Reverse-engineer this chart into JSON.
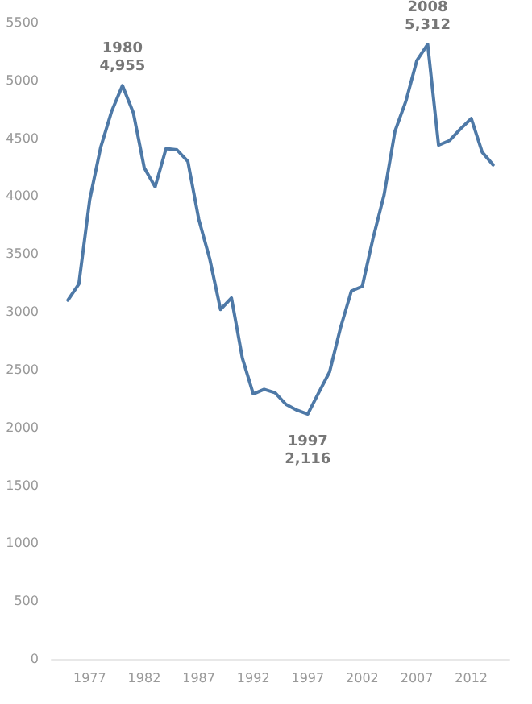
{
  "chart_data": {
    "type": "line",
    "x": [
      1975,
      1976,
      1977,
      1978,
      1979,
      1980,
      1981,
      1982,
      1983,
      1984,
      1985,
      1986,
      1987,
      1988,
      1989,
      1990,
      1991,
      1992,
      1993,
      1994,
      1995,
      1996,
      1997,
      1998,
      1999,
      2000,
      2001,
      2002,
      2003,
      2004,
      2005,
      2006,
      2007,
      2008,
      2009,
      2010,
      2011,
      2012,
      2013,
      2014
    ],
    "series": [
      {
        "color": "#4e79a7",
        "values": [
          3100,
          3240,
          3970,
          4420,
          4730,
          4955,
          4720,
          4245,
          4080,
          4410,
          4400,
          4300,
          3800,
          3460,
          3020,
          3120,
          2600,
          2290,
          2330,
          2300,
          2200,
          2150,
          2116,
          2300,
          2480,
          2860,
          3180,
          3220,
          3640,
          4010,
          4560,
          4820,
          5170,
          5312,
          4440,
          4480,
          4580,
          4670,
          4380,
          4270
        ]
      }
    ],
    "xlim": [
      1973.5,
      2015.5
    ],
    "xticks": [
      1977,
      1982,
      1987,
      1992,
      1997,
      2002,
      2007,
      2012
    ],
    "ylim": [
      0,
      5500
    ],
    "yticks": [
      0,
      500,
      1000,
      1500,
      2000,
      2500,
      3000,
      3500,
      4000,
      4500,
      5000,
      5500
    ],
    "grid": false,
    "marker": "none",
    "line_style": "solid",
    "annotations": [
      {
        "text": "1980\n4,955",
        "x": 1980,
        "y": 4955
      },
      {
        "text": "1997\n2,116",
        "x": 1997,
        "y": 2116
      },
      {
        "text": "2008\n5,312",
        "x": 2008,
        "y": 5312
      }
    ]
  }
}
